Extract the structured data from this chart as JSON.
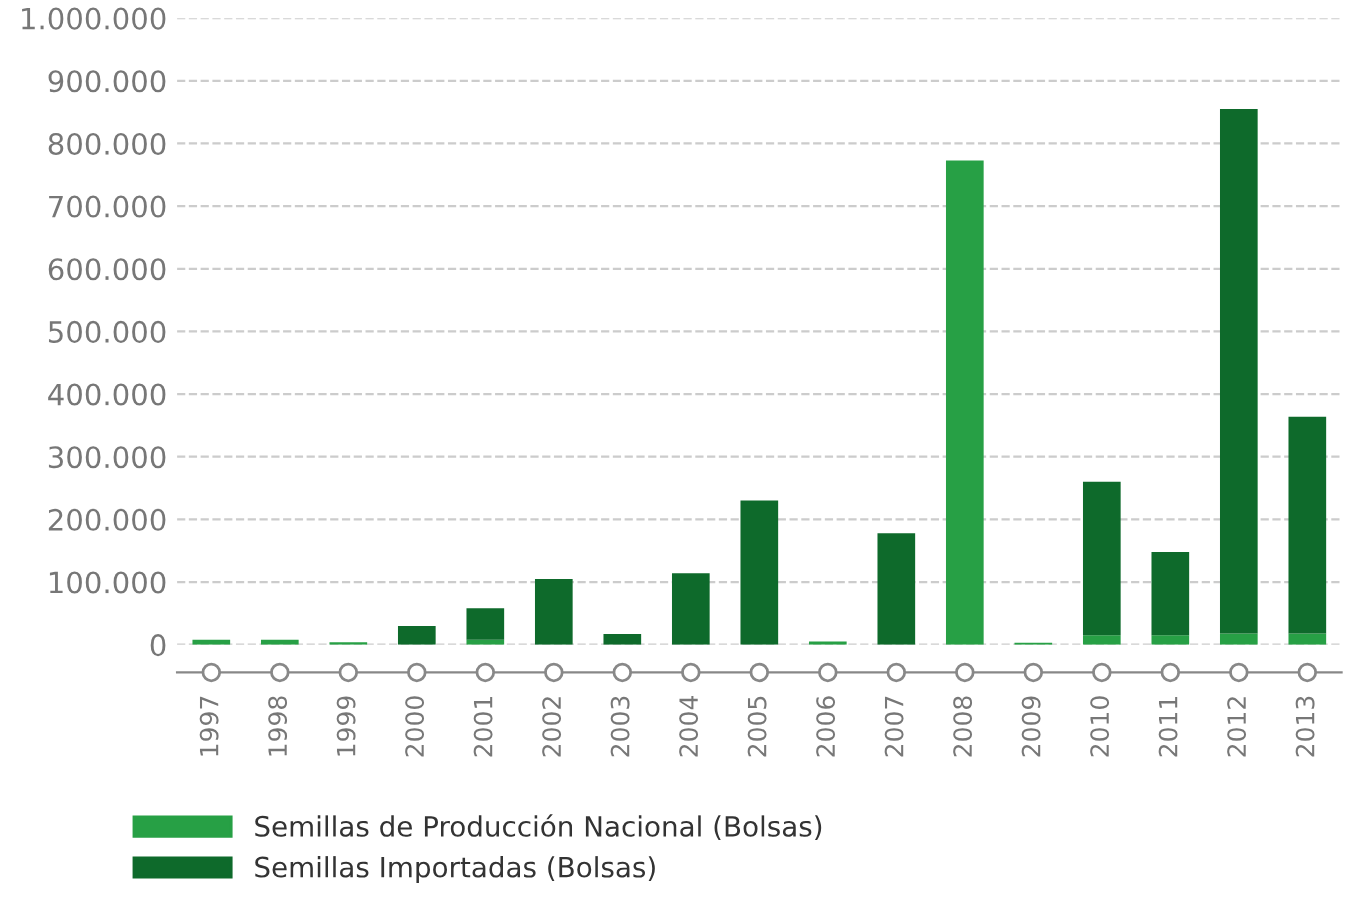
{
  "chart_data": {
    "type": "bar",
    "stacked": true,
    "categories": [
      "1997",
      "1998",
      "1999",
      "2000",
      "2001",
      "2002",
      "2003",
      "2004",
      "2005",
      "2006",
      "2007",
      "2008",
      "2009",
      "2010",
      "2011",
      "2012",
      "2013"
    ],
    "series": [
      {
        "name": "Semillas de Producción Nacional (Bolsas)",
        "color": "#27a045",
        "values": [
          8000,
          8000,
          4000,
          0,
          8000,
          0,
          0,
          0,
          0,
          5000,
          0,
          773000,
          3000,
          15000,
          15000,
          18000,
          18000
        ]
      },
      {
        "name": "Semillas Importadas (Bolsas)",
        "color": "#0e6a2b",
        "values": [
          0,
          0,
          0,
          30000,
          50000,
          105000,
          17000,
          114000,
          230000,
          0,
          178000,
          0,
          0,
          245000,
          133000,
          837000,
          346000
        ]
      }
    ],
    "ylim": [
      0,
      1000000
    ],
    "yticks": [
      {
        "value": 0,
        "label": "0"
      },
      {
        "value": 100000,
        "label": "100.000"
      },
      {
        "value": 200000,
        "label": "200.000"
      },
      {
        "value": 300000,
        "label": "300.000"
      },
      {
        "value": 400000,
        "label": "400.000"
      },
      {
        "value": 500000,
        "label": "500.000"
      },
      {
        "value": 600000,
        "label": "600.000"
      },
      {
        "value": 700000,
        "label": "700.000"
      },
      {
        "value": 800000,
        "label": "800.000"
      },
      {
        "value": 900000,
        "label": "900.000"
      },
      {
        "value": 1000000,
        "label": "1.000.000"
      }
    ],
    "grid": "y",
    "legend": "bottom left"
  }
}
